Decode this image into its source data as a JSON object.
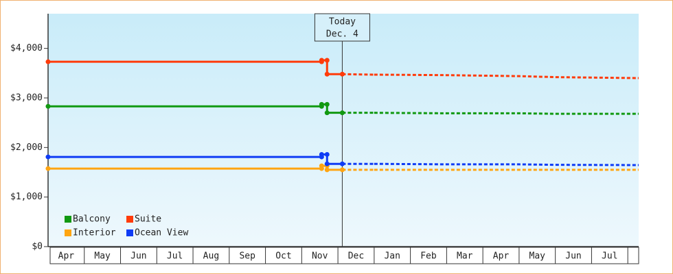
{
  "chart_data": {
    "type": "line",
    "x": [
      0,
      7.55,
      7.55,
      7.7,
      7.7,
      8.12,
      9,
      11,
      13,
      14,
      16.3
    ],
    "xlim": [
      0,
      16.3
    ],
    "xticks": [
      {
        "value": 0.5,
        "label": "Apr"
      },
      {
        "value": 1.5,
        "label": "May"
      },
      {
        "value": 2.5,
        "label": "Jun"
      },
      {
        "value": 3.5,
        "label": "Jul"
      },
      {
        "value": 4.5,
        "label": "Aug"
      },
      {
        "value": 5.5,
        "label": "Sep"
      },
      {
        "value": 6.5,
        "label": "Oct"
      },
      {
        "value": 7.5,
        "label": "Nov"
      },
      {
        "value": 8.5,
        "label": "Dec"
      },
      {
        "value": 9.5,
        "label": "Jan"
      },
      {
        "value": 10.5,
        "label": "Feb"
      },
      {
        "value": 11.5,
        "label": "Mar"
      },
      {
        "value": 12.5,
        "label": "Apr"
      },
      {
        "value": 13.5,
        "label": "May"
      },
      {
        "value": 14.5,
        "label": "Jun"
      },
      {
        "value": 15.5,
        "label": "Jul"
      }
    ],
    "ylim": [
      0,
      4700
    ],
    "yticks": [
      {
        "value": 0,
        "label": "$0"
      },
      {
        "value": 1000,
        "label": "$1,000"
      },
      {
        "value": 2000,
        "label": "$2,000"
      },
      {
        "value": 3000,
        "label": "$3,000"
      },
      {
        "value": 4000,
        "label": "$4,000"
      }
    ],
    "today": {
      "x": 8.12,
      "label": [
        "Today",
        "Dec. 4"
      ]
    },
    "series": [
      {
        "name": "Balcony",
        "color": "#119911",
        "values": [
          2830,
          2830,
          2870,
          2870,
          2700,
          2700,
          2700,
          2690,
          2690,
          2680,
          2680
        ]
      },
      {
        "name": "Suite",
        "color": "#ff3b0a",
        "values": [
          3730,
          3730,
          3760,
          3760,
          3480,
          3480,
          3470,
          3460,
          3440,
          3420,
          3400
        ]
      },
      {
        "name": "Interior",
        "color": "#ffa511",
        "values": [
          1575,
          1575,
          1630,
          1630,
          1550,
          1550,
          1550,
          1550,
          1550,
          1550,
          1550
        ]
      },
      {
        "name": "Ocean View",
        "color": "#0f3cf5",
        "values": [
          1810,
          1810,
          1860,
          1860,
          1670,
          1670,
          1670,
          1660,
          1660,
          1650,
          1645
        ]
      }
    ],
    "legend": "lower left"
  }
}
